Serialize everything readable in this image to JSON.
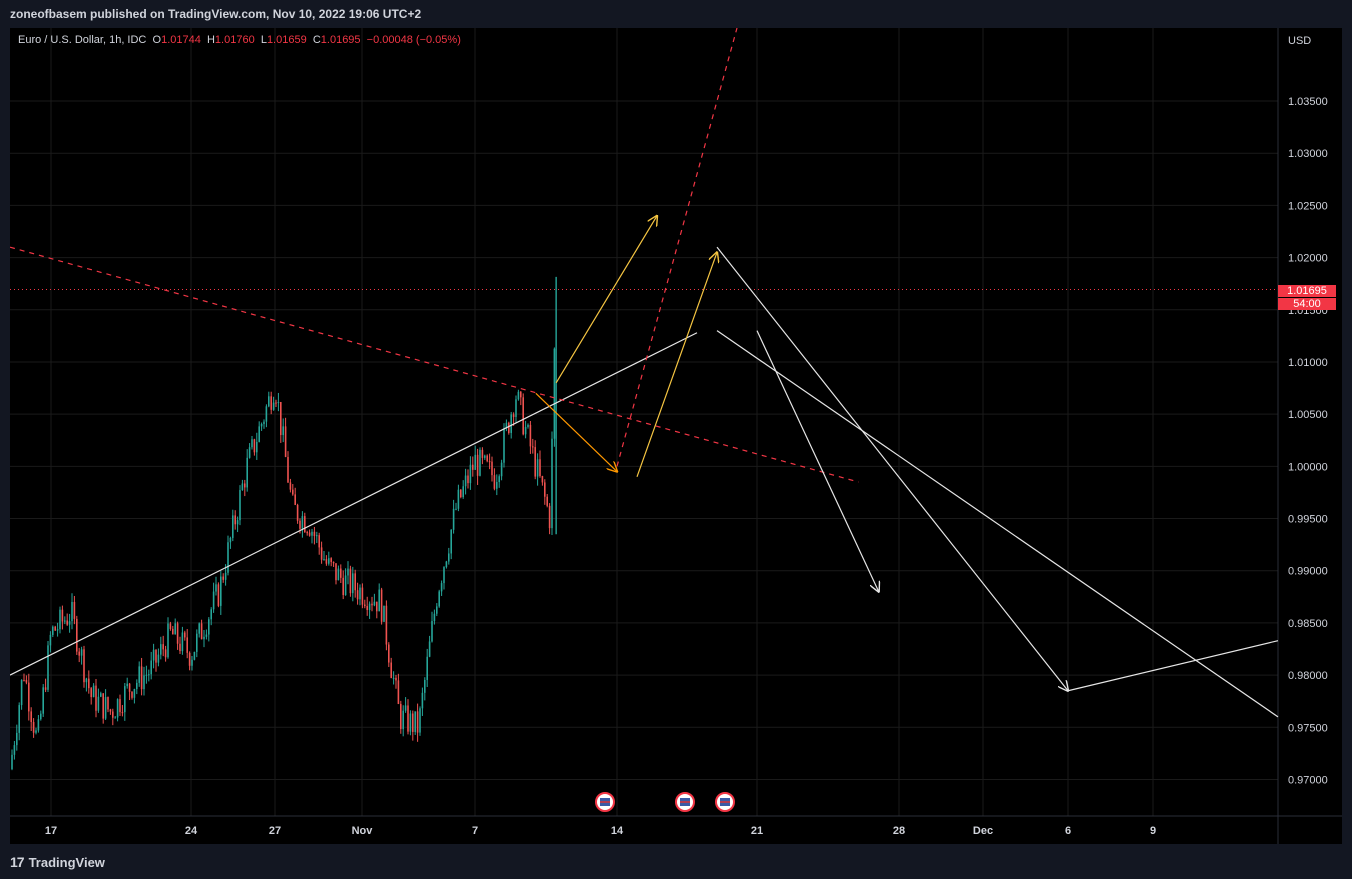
{
  "header": {
    "publish_text": "zoneofbasem published on TradingView.com, Nov 10, 2022 19:06 UTC+2"
  },
  "legend": {
    "symbol": "Euro / U.S. Dollar, 1h, IDC",
    "o_label": "O",
    "o": "1.01744",
    "h_label": "H",
    "h": "1.01760",
    "l_label": "L",
    "l": "1.01659",
    "c_label": "C",
    "c": "1.01695",
    "change": "−0.00048 (−0.05%)"
  },
  "price_scale": {
    "currency": "USD",
    "current_price": "1.01695",
    "countdown": "54:00"
  },
  "footer": {
    "brand": "TradingView",
    "logo_glyph": "17"
  },
  "colors": {
    "up": "#26a69a",
    "down": "#ef5350",
    "accent_red": "#f23645",
    "yellow": "#f5c542",
    "orange": "#ff9800",
    "white": "#e6e6e6"
  },
  "chart_data": {
    "type": "candlestick",
    "title": "Euro / U.S. Dollar, 1h, IDC",
    "x_ticks": [
      "17",
      "24",
      "27",
      "Nov",
      "7",
      "14",
      "21",
      "28",
      "Dec",
      "6",
      "9"
    ],
    "y_ticks": [
      "0.97000",
      "0.97500",
      "0.98000",
      "0.98500",
      "0.99000",
      "0.99500",
      "1.00000",
      "1.00500",
      "1.01000",
      "1.01500",
      "1.02000",
      "1.02500",
      "1.03000",
      "1.03500"
    ],
    "ylim": [
      0.9665,
      1.042
    ],
    "grid": true,
    "last_price": 1.01695,
    "price_path": [
      [
        "Oct 14",
        0.971
      ],
      [
        "Oct 15",
        0.9805
      ],
      [
        "Oct 16",
        0.9735
      ],
      [
        "Oct 17",
        0.984
      ],
      [
        "Oct 18",
        0.986
      ],
      [
        "Oct 19",
        0.978
      ],
      [
        "Oct 20",
        0.9765
      ],
      [
        "Oct 21",
        0.979
      ],
      [
        "Oct 22",
        0.9805
      ],
      [
        "Oct 23",
        0.984
      ],
      [
        "Oct 24",
        0.982
      ],
      [
        "Oct 25",
        0.988
      ],
      [
        "Oct 26",
        1.0
      ],
      [
        "Oct 27",
        1.008
      ],
      [
        "Oct 28",
        0.996
      ],
      [
        "Oct 29",
        0.9945
      ],
      [
        "Oct 30",
        0.9905
      ],
      [
        "Oct 31",
        0.989
      ],
      [
        "Nov 1",
        0.988
      ],
      [
        "Nov 2",
        0.987
      ],
      [
        "Nov 3",
        0.976
      ],
      [
        "Nov 4",
        0.975
      ],
      [
        "Nov 5",
        0.988
      ],
      [
        "Nov 6",
        0.996
      ],
      [
        "Nov 7",
        1.0005
      ],
      [
        "Nov 8",
        0.999
      ],
      [
        "Nov 9",
        1.007
      ],
      [
        "Nov 10",
        1.0
      ],
      [
        "Nov 10b",
        0.995
      ],
      [
        "Nov 11",
        1.017
      ]
    ],
    "drawings": [
      {
        "kind": "line",
        "color": "white",
        "points": [
          [
            "Oct 14",
            0.98
          ],
          [
            "Nov 18",
            1.0128
          ]
        ]
      },
      {
        "kind": "dashed",
        "color": "red",
        "points": [
          [
            "Oct 14",
            1.021
          ],
          [
            "Nov 26",
            0.9985
          ]
        ]
      },
      {
        "kind": "dashed",
        "color": "red",
        "points": [
          [
            "Nov 14",
            1.0
          ],
          [
            "Nov 20",
            1.042
          ]
        ]
      },
      {
        "kind": "arrow",
        "color": "yellow",
        "points": [
          [
            "Nov 11",
            1.008
          ],
          [
            "Nov 16",
            1.024
          ]
        ]
      },
      {
        "kind": "arrow",
        "color": "yellow",
        "points": [
          [
            "Nov 15",
            0.999
          ],
          [
            "Nov 19",
            1.0205
          ]
        ]
      },
      {
        "kind": "arrow",
        "color": "orange",
        "points": [
          [
            "Nov 10",
            1.007
          ],
          [
            "Nov 14",
            0.9995
          ]
        ]
      },
      {
        "kind": "arrow",
        "color": "white",
        "points": [
          [
            "Nov 19",
            1.021
          ],
          [
            "Dec 6",
            0.9785
          ]
        ]
      },
      {
        "kind": "arrow",
        "color": "white",
        "points": [
          [
            "Nov 21",
            1.013
          ],
          [
            "Nov 27",
            0.988
          ]
        ]
      },
      {
        "kind": "line",
        "color": "white",
        "points": [
          [
            "Dec 6",
            0.9785
          ],
          [
            "Dec 14",
            0.9833
          ]
        ]
      },
      {
        "kind": "line",
        "color": "white",
        "points": [
          [
            "Nov 19",
            1.013
          ],
          [
            "Dec 14",
            0.976
          ]
        ]
      }
    ],
    "events": [
      "US",
      "US",
      "US"
    ]
  }
}
